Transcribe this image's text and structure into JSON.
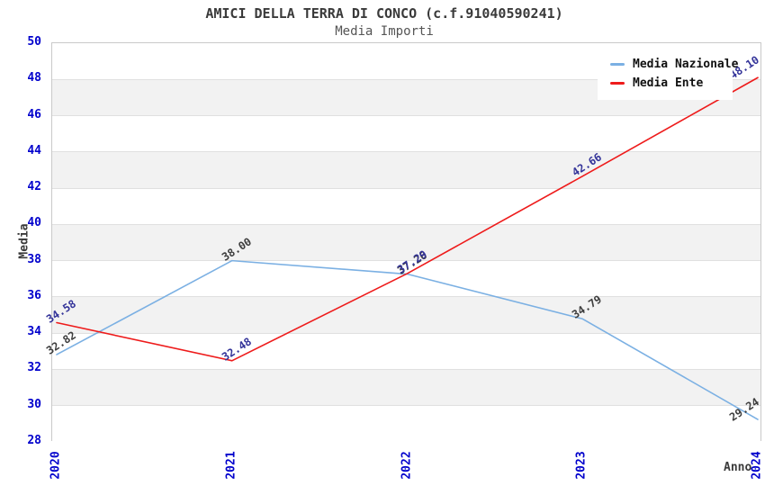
{
  "header": {
    "title": "AMICI DELLA TERRA DI CONCO (c.f.91040590241)",
    "subtitle": "Media Importi"
  },
  "chart_data": {
    "type": "line",
    "title": "AMICI DELLA TERRA DI CONCO (c.f.91040590241)",
    "subtitle": "Media Importi",
    "x_categories": [
      "2020",
      "2021",
      "2022",
      "2023",
      "2024"
    ],
    "series": [
      {
        "name": "Media Nazionale",
        "color": "#7bb0e3",
        "label_color": "#3d3d3d",
        "values": [
          32.82,
          38.0,
          37.26,
          34.79,
          29.24
        ],
        "point_labels": [
          "32.82",
          "38.00",
          "37.26",
          "34.79",
          "29.24"
        ]
      },
      {
        "name": "Media Ente",
        "color": "#ee1b1b",
        "label_color": "#333399",
        "values": [
          34.58,
          32.48,
          37.29,
          42.66,
          48.1
        ],
        "point_labels": [
          "34.58",
          "32.48",
          "37.29",
          "42.66",
          "48.10"
        ]
      }
    ],
    "xlabel": "Anno",
    "ylabel": "Media",
    "ylim": [
      28,
      50
    ],
    "y_ticks": [
      "50",
      "48",
      "46",
      "44",
      "42",
      "40",
      "38",
      "36",
      "34",
      "32",
      "30",
      "28"
    ],
    "tick_color": "#0000cc",
    "grid": "horizontal-bands",
    "band_colors": [
      "#ffffff",
      "#f2f2f2"
    ],
    "gridline_color": "#e0e0e0",
    "legend_position": "top-right"
  },
  "legend": {
    "items": [
      {
        "label": "Media Nazionale",
        "color": "#7bb0e3"
      },
      {
        "label": "Media Ente",
        "color": "#ee1b1b"
      }
    ]
  },
  "axes": {
    "xlabel": "Anno",
    "ylabel": "Media"
  }
}
